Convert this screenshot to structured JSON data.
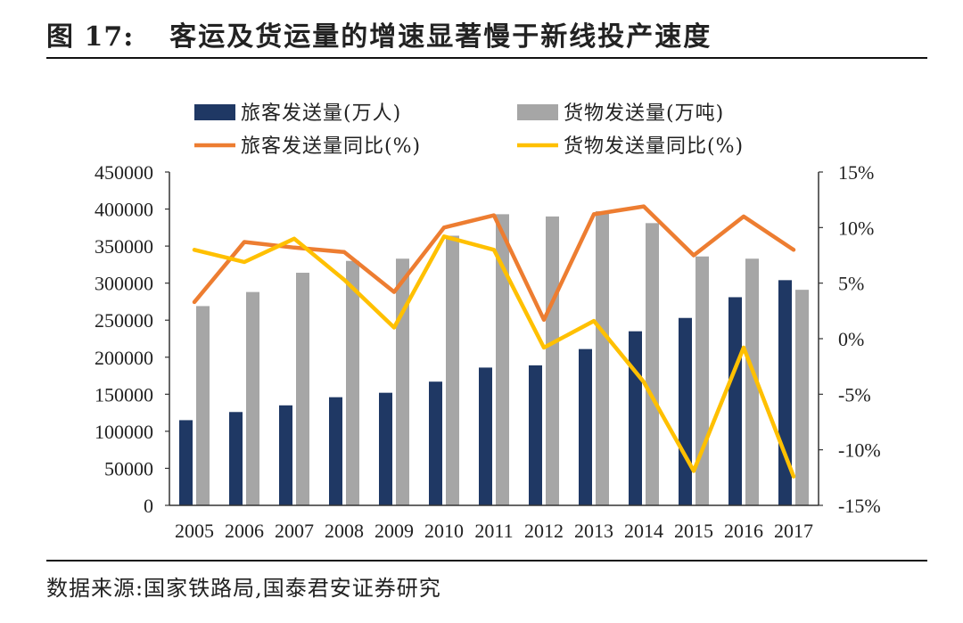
{
  "header": {
    "figure_label": "图 17:",
    "title": "客运及货运量的增速显著慢于新线投产速度"
  },
  "source": {
    "label": "数据来源:",
    "text": "国家铁路局,国泰君安证券研究"
  },
  "colors": {
    "passenger_bar": "#1f3864",
    "freight_bar": "#a6a6a6",
    "passenger_line": "#ed7d31",
    "freight_line": "#ffc000"
  },
  "chart_data": {
    "type": "bar+line",
    "categories": [
      "2005",
      "2006",
      "2007",
      "2008",
      "2009",
      "2010",
      "2011",
      "2012",
      "2013",
      "2014",
      "2015",
      "2016",
      "2017"
    ],
    "series": [
      {
        "name": "旅客发送量(万人)",
        "type": "bar",
        "axis": "left",
        "values": [
          115000,
          126000,
          135000,
          146000,
          152000,
          167000,
          186000,
          189000,
          211000,
          235000,
          253000,
          281000,
          304000
        ]
      },
      {
        "name": "货物发送量(万吨)",
        "type": "bar",
        "axis": "left",
        "values": [
          269000,
          288000,
          314000,
          330000,
          333000,
          364000,
          393000,
          390000,
          397000,
          381000,
          336000,
          333000,
          291000
        ]
      },
      {
        "name": "旅客发送量同比(%)",
        "type": "line",
        "axis": "right",
        "values": [
          3.3,
          8.7,
          8.2,
          7.8,
          4.2,
          10.0,
          11.1,
          1.7,
          11.2,
          11.9,
          7.5,
          11.0,
          8.0
        ]
      },
      {
        "name": "货物发送量同比(%)",
        "type": "line",
        "axis": "right",
        "values": [
          8.0,
          6.9,
          9.0,
          5.3,
          1.0,
          9.2,
          8.0,
          -0.8,
          1.6,
          -3.9,
          -11.9,
          -0.8,
          -12.4
        ]
      }
    ],
    "legend": [
      "旅客发送量(万人)",
      "货物发送量(万吨)",
      "旅客发送量同比(%)",
      "货物发送量同比(%)"
    ],
    "left_axis": {
      "min": 0,
      "max": 450000,
      "step": 50000,
      "tick_labels": [
        "0",
        "50000",
        "100000",
        "150000",
        "200000",
        "250000",
        "300000",
        "350000",
        "400000",
        "450000"
      ]
    },
    "right_axis": {
      "min": -15,
      "max": 15,
      "step": 5,
      "tick_labels": [
        "-15%",
        "-10%",
        "-5%",
        "0%",
        "5%",
        "10%",
        "15%"
      ]
    },
    "legend_position": "top"
  }
}
